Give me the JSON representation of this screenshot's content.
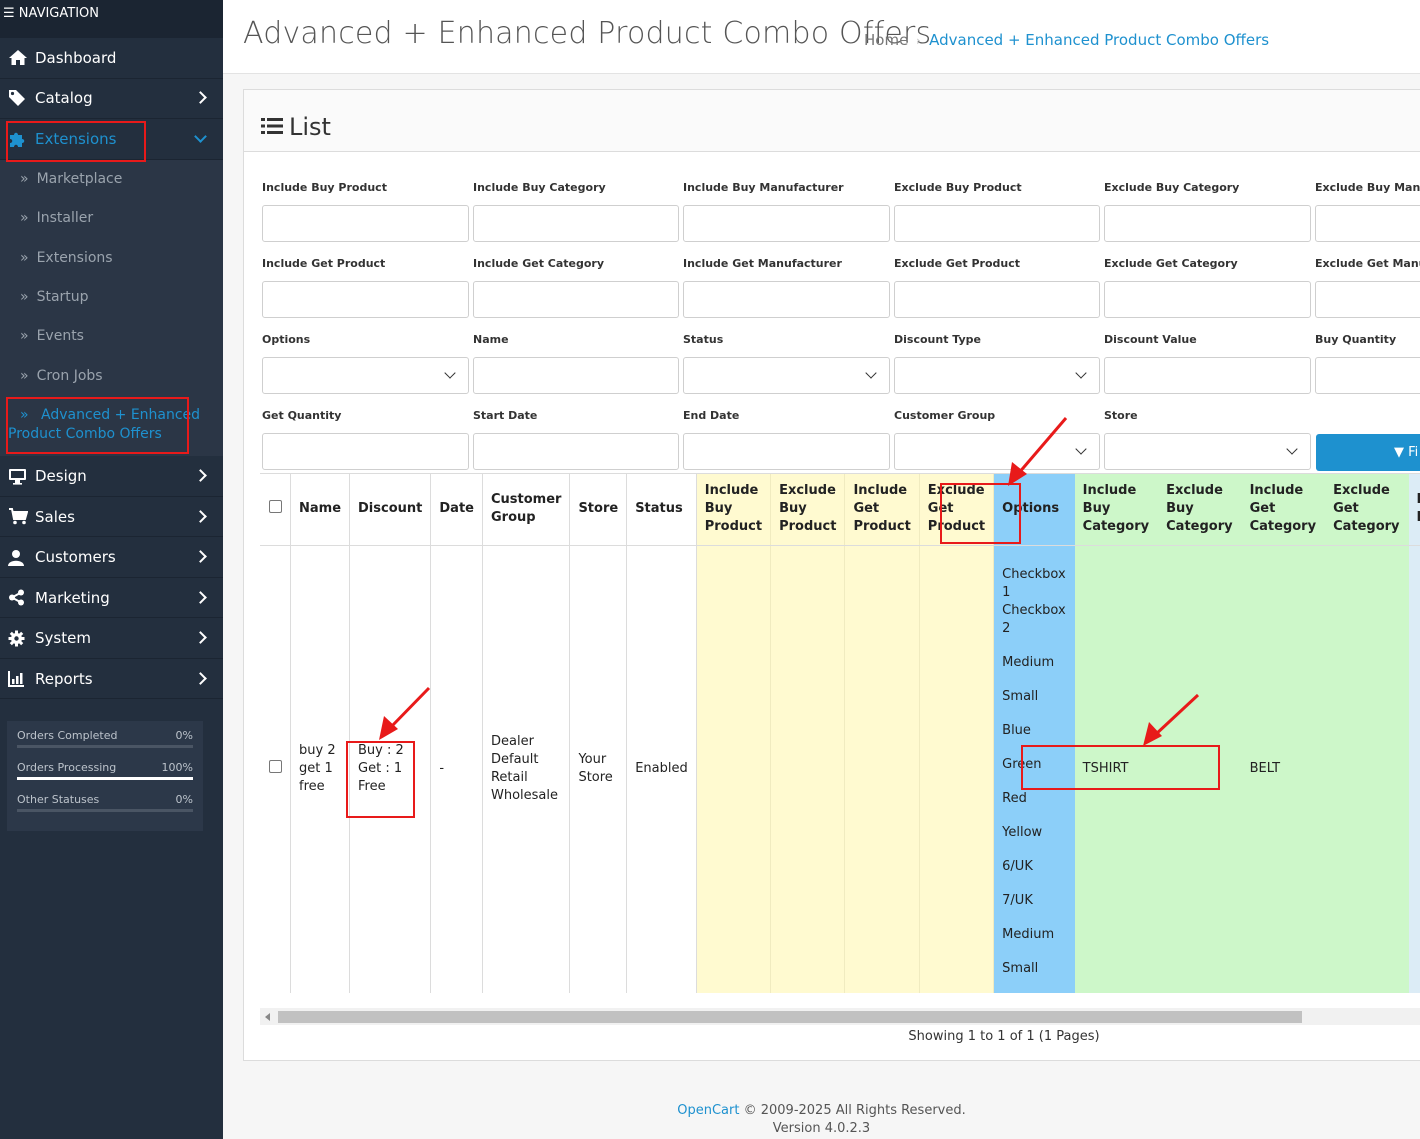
{
  "navigation": {
    "header": "NAVIGATION",
    "items": [
      {
        "label": "Dashboard",
        "icon": "home-icon"
      },
      {
        "label": "Catalog",
        "icon": "tag-icon"
      },
      {
        "label": "Extensions",
        "icon": "puzzle-icon"
      },
      {
        "label": "Design",
        "icon": "monitor-icon"
      },
      {
        "label": "Sales",
        "icon": "cart-icon"
      },
      {
        "label": "Customers",
        "icon": "user-icon"
      },
      {
        "label": "Marketing",
        "icon": "share-icon"
      },
      {
        "label": "System",
        "icon": "gear-icon"
      },
      {
        "label": "Reports",
        "icon": "chart-icon"
      }
    ],
    "extensions_sub": [
      "Marketplace",
      "Installer",
      "Extensions",
      "Startup",
      "Events",
      "Cron Jobs",
      "Advanced + Enhanced Product Combo Offers"
    ],
    "stats": [
      {
        "label": "Orders Completed",
        "value": "0%",
        "fill": 0
      },
      {
        "label": "Orders Processing",
        "value": "100%",
        "fill": 1
      },
      {
        "label": "Other Statuses",
        "value": "0%",
        "fill": 0
      }
    ]
  },
  "header": {
    "title": "Advanced + Enhanced Product Combo Offers",
    "breadcrumb": [
      "Home",
      "Advanced + Enhanced Product Combo Offers"
    ]
  },
  "card": {
    "title": "List",
    "filters": [
      [
        "Include Buy Product",
        "Include Buy Category",
        "Include Buy Manufacturer",
        "Exclude Buy Product",
        "Exclude Buy Category",
        "Exclude Buy Manuf"
      ],
      [
        "Include Get Product",
        "Include Get Category",
        "Include Get Manufacturer",
        "Exclude Get Product",
        "Exclude Get Category",
        "Exclude Get Manufa"
      ],
      [
        "Options",
        "Name",
        "Status",
        "Discount Type",
        "Discount Value",
        "Buy Quantity"
      ],
      [
        "Get Quantity",
        "Start Date",
        "End Date",
        "Customer Group",
        "Store"
      ]
    ],
    "filter_button": "Fi",
    "table": {
      "headers": [
        "Name",
        "Discount",
        "Date",
        "Customer Group",
        "Store",
        "Status",
        "Include Buy Product",
        "Exclude Buy Product",
        "Include Get Product",
        "Exclude Get Product",
        "Options",
        "Include Buy Category",
        "Exclude Buy Category",
        "Include Get Category",
        "Exclude Get Category",
        "Include Buy Manufacturer"
      ],
      "row": {
        "name": "buy 2 get 1 free",
        "discount": [
          "Buy : 2",
          "Get : 1",
          "Free"
        ],
        "date": "-",
        "customer_group": [
          "Dealer",
          "Default",
          "Retail",
          "Wholesale"
        ],
        "store": "Your Store",
        "status": "Enabled",
        "options": [
          "Checkbox 1",
          "Checkbox 2",
          "Medium",
          "Small",
          "Blue",
          "Green",
          "Red",
          "Yellow",
          "6/UK",
          "7/UK",
          "Medium",
          "Small"
        ],
        "include_buy_category": "TSHIRT",
        "include_get_category": "BELT"
      }
    },
    "pager": "Showing 1 to 1 of 1 (1 Pages)"
  },
  "footer": {
    "brand": "OpenCart",
    "copyright": " © 2009-2025 All Rights Reserved.",
    "version": "Version 4.0.2.3"
  }
}
